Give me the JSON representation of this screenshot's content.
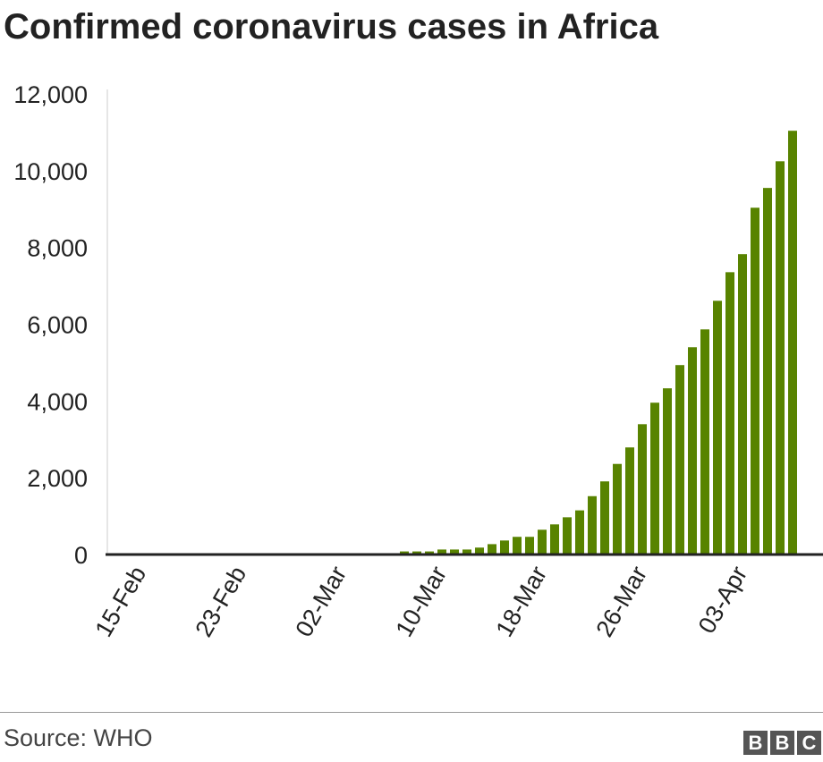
{
  "chart_data": {
    "type": "bar",
    "title": "Confirmed coronavirus cases in Africa",
    "xlabel": "",
    "ylabel": "",
    "ylim": [
      0,
      12000
    ],
    "yticks": [
      0,
      2000,
      4000,
      6000,
      8000,
      10000,
      12000
    ],
    "ytick_labels": [
      "0",
      "2,000",
      "4,000",
      "6,000",
      "8,000",
      "10,000",
      "12,000"
    ],
    "xtick_labels": [
      "15-Feb",
      "23-Feb",
      "02-Mar",
      "10-Mar",
      "18-Mar",
      "26-Mar",
      "03-Apr"
    ],
    "xtick_interval_days": 8,
    "start_date": "15-Feb",
    "values": [
      0,
      0,
      0,
      0,
      0,
      0,
      0,
      0,
      0,
      0,
      0,
      0,
      0,
      0,
      0,
      0,
      0,
      0,
      30,
      30,
      30,
      80,
      80,
      80,
      130,
      130,
      130,
      180,
      270,
      365,
      460,
      460,
      645,
      785,
      970,
      1150,
      1520,
      1905,
      2360,
      2790,
      3395,
      3955,
      4330,
      4935,
      5400,
      5865,
      6610,
      7355,
      7825,
      9035,
      9550,
      10245,
      11040
    ],
    "bar_color": "#588300",
    "grid": false
  },
  "footer": {
    "source": "Source: WHO",
    "logo": [
      "B",
      "B",
      "C"
    ]
  }
}
